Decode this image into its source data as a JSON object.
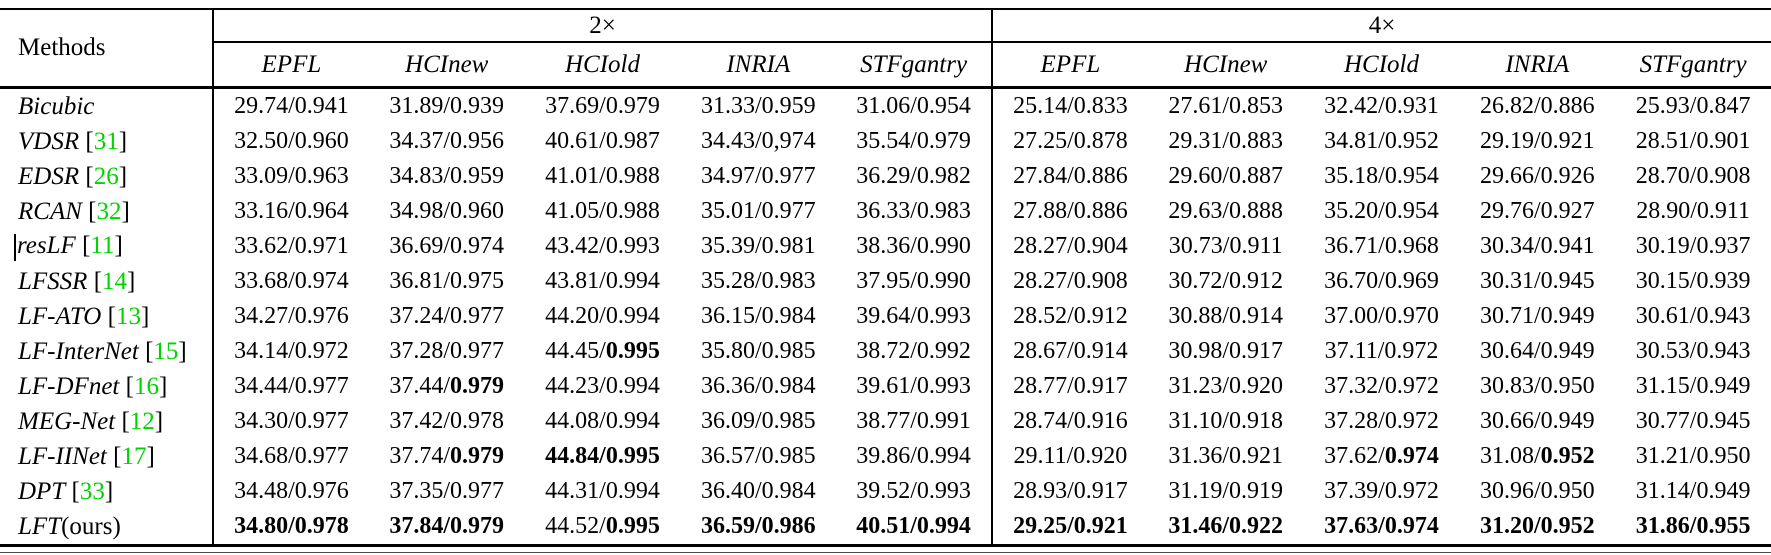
{
  "header": {
    "methods_label": "Methods",
    "scale_groups": [
      "2×",
      "4×"
    ],
    "datasets": [
      "EPFL",
      "HCInew",
      "HCIold",
      "INRIA",
      "STFgantry"
    ]
  },
  "colors": {
    "citation_green": "#00d400",
    "text": "#000000",
    "rule": "#000000"
  },
  "rows": [
    {
      "name": "Bicubic",
      "cite": "",
      "x2": [
        {
          "psnr": "29.74",
          "ssim": "0.941"
        },
        {
          "psnr": "31.89",
          "ssim": "0.939"
        },
        {
          "psnr": "37.69",
          "ssim": "0.979"
        },
        {
          "psnr": "31.33",
          "ssim": "0.959"
        },
        {
          "psnr": "31.06",
          "ssim": "0.954"
        }
      ],
      "x4": [
        {
          "psnr": "25.14",
          "ssim": "0.833"
        },
        {
          "psnr": "27.61",
          "ssim": "0.853"
        },
        {
          "psnr": "32.42",
          "ssim": "0.931"
        },
        {
          "psnr": "26.82",
          "ssim": "0.886"
        },
        {
          "psnr": "25.93",
          "ssim": "0.847"
        }
      ]
    },
    {
      "name": "VDSR",
      "cite": "31",
      "x2": [
        {
          "psnr": "32.50",
          "ssim": "0.960"
        },
        {
          "psnr": "34.37",
          "ssim": "0.956"
        },
        {
          "psnr": "40.61",
          "ssim": "0.987"
        },
        {
          "psnr": "34.43",
          "ssim": "0,974"
        },
        {
          "psnr": "35.54",
          "ssim": "0.979"
        }
      ],
      "x4": [
        {
          "psnr": "27.25",
          "ssim": "0.878"
        },
        {
          "psnr": "29.31",
          "ssim": "0.883"
        },
        {
          "psnr": "34.81",
          "ssim": "0.952"
        },
        {
          "psnr": "29.19",
          "ssim": "0.921"
        },
        {
          "psnr": "28.51",
          "ssim": "0.901"
        }
      ]
    },
    {
      "name": "EDSR",
      "cite": "26",
      "x2": [
        {
          "psnr": "33.09",
          "ssim": "0.963"
        },
        {
          "psnr": "34.83",
          "ssim": "0.959"
        },
        {
          "psnr": "41.01",
          "ssim": "0.988"
        },
        {
          "psnr": "34.97",
          "ssim": "0.977"
        },
        {
          "psnr": "36.29",
          "ssim": "0.982"
        }
      ],
      "x4": [
        {
          "psnr": "27.84",
          "ssim": "0.886"
        },
        {
          "psnr": "29.60",
          "ssim": "0.887"
        },
        {
          "psnr": "35.18",
          "ssim": "0.954"
        },
        {
          "psnr": "29.66",
          "ssim": "0.926"
        },
        {
          "psnr": "28.70",
          "ssim": "0.908"
        }
      ]
    },
    {
      "name": "RCAN",
      "cite": "32",
      "x2": [
        {
          "psnr": "33.16",
          "ssim": "0.964"
        },
        {
          "psnr": "34.98",
          "ssim": "0.960"
        },
        {
          "psnr": "41.05",
          "ssim": "0.988"
        },
        {
          "psnr": "35.01",
          "ssim": "0.977"
        },
        {
          "psnr": "36.33",
          "ssim": "0.983"
        }
      ],
      "x4": [
        {
          "psnr": "27.88",
          "ssim": "0.886"
        },
        {
          "psnr": "29.63",
          "ssim": "0.888"
        },
        {
          "psnr": "35.20",
          "ssim": "0.954"
        },
        {
          "psnr": "29.76",
          "ssim": "0.927"
        },
        {
          "psnr": "28.90",
          "ssim": "0.911"
        }
      ]
    },
    {
      "name": "resLF",
      "cite": "11",
      "cursor": true,
      "x2": [
        {
          "psnr": "33.62",
          "ssim": "0.971"
        },
        {
          "psnr": "36.69",
          "ssim": "0.974"
        },
        {
          "psnr": "43.42",
          "ssim": "0.993"
        },
        {
          "psnr": "35.39",
          "ssim": "0.981"
        },
        {
          "psnr": "38.36",
          "ssim": "0.990"
        }
      ],
      "x4": [
        {
          "psnr": "28.27",
          "ssim": "0.904"
        },
        {
          "psnr": "30.73",
          "ssim": "0.911"
        },
        {
          "psnr": "36.71",
          "ssim": "0.968"
        },
        {
          "psnr": "30.34",
          "ssim": "0.941"
        },
        {
          "psnr": "30.19",
          "ssim": "0.937"
        }
      ]
    },
    {
      "name": "LFSSR",
      "cite": "14",
      "x2": [
        {
          "psnr": "33.68",
          "ssim": "0.974"
        },
        {
          "psnr": "36.81",
          "ssim": "0.975"
        },
        {
          "psnr": "43.81",
          "ssim": "0.994"
        },
        {
          "psnr": "35.28",
          "ssim": "0.983"
        },
        {
          "psnr": "37.95",
          "ssim": "0.990"
        }
      ],
      "x4": [
        {
          "psnr": "28.27",
          "ssim": "0.908"
        },
        {
          "psnr": "30.72",
          "ssim": "0.912"
        },
        {
          "psnr": "36.70",
          "ssim": "0.969"
        },
        {
          "psnr": "30.31",
          "ssim": "0.945"
        },
        {
          "psnr": "30.15",
          "ssim": "0.939"
        }
      ]
    },
    {
      "name": "LF-ATO",
      "cite": "13",
      "x2": [
        {
          "psnr": "34.27",
          "ssim": "0.976"
        },
        {
          "psnr": "37.24",
          "ssim": "0.977"
        },
        {
          "psnr": "44.20",
          "ssim": "0.994"
        },
        {
          "psnr": "36.15",
          "ssim": "0.984"
        },
        {
          "psnr": "39.64",
          "ssim": "0.993"
        }
      ],
      "x4": [
        {
          "psnr": "28.52",
          "ssim": "0.912"
        },
        {
          "psnr": "30.88",
          "ssim": "0.914"
        },
        {
          "psnr": "37.00",
          "ssim": "0.970"
        },
        {
          "psnr": "30.71",
          "ssim": "0.949"
        },
        {
          "psnr": "30.61",
          "ssim": "0.943"
        }
      ]
    },
    {
      "name": "LF-InterNet",
      "cite": "15",
      "x2": [
        {
          "psnr": "34.14",
          "ssim": "0.972"
        },
        {
          "psnr": "37.28",
          "ssim": "0.977"
        },
        {
          "psnr": "44.45",
          "ssim": "0.995",
          "bold": "ssim"
        },
        {
          "psnr": "35.80",
          "ssim": "0.985"
        },
        {
          "psnr": "38.72",
          "ssim": "0.992"
        }
      ],
      "x4": [
        {
          "psnr": "28.67",
          "ssim": "0.914"
        },
        {
          "psnr": "30.98",
          "ssim": "0.917"
        },
        {
          "psnr": "37.11",
          "ssim": "0.972"
        },
        {
          "psnr": "30.64",
          "ssim": "0.949"
        },
        {
          "psnr": "30.53",
          "ssim": "0.943"
        }
      ]
    },
    {
      "name": "LF-DFnet",
      "cite": "16",
      "x2": [
        {
          "psnr": "34.44",
          "ssim": "0.977"
        },
        {
          "psnr": "37.44",
          "ssim": "0.979",
          "bold": "ssim"
        },
        {
          "psnr": "44.23",
          "ssim": "0.994"
        },
        {
          "psnr": "36.36",
          "ssim": "0.984"
        },
        {
          "psnr": "39.61",
          "ssim": "0.993"
        }
      ],
      "x4": [
        {
          "psnr": "28.77",
          "ssim": "0.917"
        },
        {
          "psnr": "31.23",
          "ssim": "0.920"
        },
        {
          "psnr": "37.32",
          "ssim": "0.972"
        },
        {
          "psnr": "30.83",
          "ssim": "0.950"
        },
        {
          "psnr": "31.15",
          "ssim": "0.949"
        }
      ]
    },
    {
      "name": "MEG-Net",
      "cite": "12",
      "x2": [
        {
          "psnr": "34.30",
          "ssim": "0.977"
        },
        {
          "psnr": "37.42",
          "ssim": "0.978"
        },
        {
          "psnr": "44.08",
          "ssim": "0.994"
        },
        {
          "psnr": "36.09",
          "ssim": "0.985"
        },
        {
          "psnr": "38.77",
          "ssim": "0.991"
        }
      ],
      "x4": [
        {
          "psnr": "28.74",
          "ssim": "0.916"
        },
        {
          "psnr": "31.10",
          "ssim": "0.918"
        },
        {
          "psnr": "37.28",
          "ssim": "0.972"
        },
        {
          "psnr": "30.66",
          "ssim": "0.949"
        },
        {
          "psnr": "30.77",
          "ssim": "0.945"
        }
      ]
    },
    {
      "name": "LF-IINet",
      "cite": "17",
      "x2": [
        {
          "psnr": "34.68",
          "ssim": "0.977"
        },
        {
          "psnr": "37.74",
          "ssim": "0.979",
          "bold": "ssim"
        },
        {
          "psnr": "44.84",
          "ssim": "0.995",
          "bold": "both"
        },
        {
          "psnr": "36.57",
          "ssim": "0.985"
        },
        {
          "psnr": "39.86",
          "ssim": "0.994"
        }
      ],
      "x4": [
        {
          "psnr": "29.11",
          "ssim": "0.920"
        },
        {
          "psnr": "31.36",
          "ssim": "0.921"
        },
        {
          "psnr": "37.62",
          "ssim": "0.974",
          "bold": "ssim"
        },
        {
          "psnr": "31.08",
          "ssim": "0.952",
          "bold": "ssim"
        },
        {
          "psnr": "31.21",
          "ssim": "0.950"
        }
      ]
    },
    {
      "name": "DPT",
      "cite": "33",
      "x2": [
        {
          "psnr": "34.48",
          "ssim": "0.976"
        },
        {
          "psnr": "37.35",
          "ssim": "0.977"
        },
        {
          "psnr": "44.31",
          "ssim": "0.994"
        },
        {
          "psnr": "36.40",
          "ssim": "0.984"
        },
        {
          "psnr": "39.52",
          "ssim": "0.993"
        }
      ],
      "x4": [
        {
          "psnr": "28.93",
          "ssim": "0.917"
        },
        {
          "psnr": "31.19",
          "ssim": "0.919"
        },
        {
          "psnr": "37.39",
          "ssim": "0.972"
        },
        {
          "psnr": "30.96",
          "ssim": "0.950"
        },
        {
          "psnr": "31.14",
          "ssim": "0.949"
        }
      ]
    },
    {
      "name": "LFT",
      "cite": "",
      "suffix": "(ours)",
      "x2": [
        {
          "psnr": "34.80",
          "ssim": "0.978",
          "bold": "both"
        },
        {
          "psnr": "37.84",
          "ssim": "0.979",
          "bold": "both"
        },
        {
          "psnr": "44.52",
          "ssim": "0.995",
          "bold": "ssim"
        },
        {
          "psnr": "36.59",
          "ssim": "0.986",
          "bold": "both"
        },
        {
          "psnr": "40.51",
          "ssim": "0.994",
          "bold": "both"
        }
      ],
      "x4": [
        {
          "psnr": "29.25",
          "ssim": "0.921",
          "bold": "both"
        },
        {
          "psnr": "31.46",
          "ssim": "0.922",
          "bold": "both"
        },
        {
          "psnr": "37.63",
          "ssim": "0.974",
          "bold": "both"
        },
        {
          "psnr": "31.20",
          "ssim": "0.952",
          "bold": "both"
        },
        {
          "psnr": "31.86",
          "ssim": "0.955",
          "bold": "both"
        }
      ]
    }
  ]
}
